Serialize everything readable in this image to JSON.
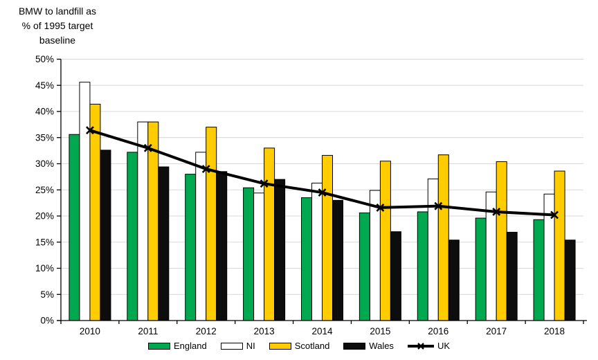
{
  "chart_data": {
    "type": "bar",
    "subtype": "grouped-bars-with-line-overlay",
    "title": "BMW to landfill as\n% of 1995 target\nbaseline",
    "categories": [
      "2010",
      "2011",
      "2012",
      "2013",
      "2014",
      "2015",
      "2016",
      "2017",
      "2018"
    ],
    "series": [
      {
        "name": "England",
        "type": "bar",
        "color": "#00A94F",
        "values": [
          35.6,
          32.2,
          28.0,
          25.4,
          23.5,
          20.6,
          20.8,
          19.6,
          19.3
        ]
      },
      {
        "name": "NI",
        "type": "bar",
        "color": "#FFFFFF",
        "values": [
          45.6,
          38.0,
          32.2,
          24.4,
          26.3,
          24.9,
          27.1,
          24.6,
          24.2
        ]
      },
      {
        "name": "Scotland",
        "type": "bar",
        "color": "#FFCC00",
        "values": [
          41.4,
          38.0,
          37.0,
          33.0,
          31.6,
          30.5,
          31.7,
          30.4,
          28.6
        ]
      },
      {
        "name": "Wales",
        "type": "bar",
        "color": "#0D0D0D",
        "values": [
          32.6,
          29.4,
          28.5,
          27.0,
          23.0,
          17.0,
          15.4,
          16.9,
          15.4
        ]
      },
      {
        "name": "UK",
        "type": "line",
        "color": "#000000",
        "marker": "x",
        "values": [
          36.4,
          33.0,
          29.0,
          26.2,
          24.5,
          21.6,
          21.9,
          20.8,
          20.2
        ]
      }
    ],
    "xlabel": "",
    "ylabel": "BMW to landfill as % of 1995 target baseline",
    "ylim": [
      0,
      50
    ],
    "ytick_step": 5,
    "ytick_labels": [
      "0%",
      "5%",
      "10%",
      "15%",
      "20%",
      "25%",
      "30%",
      "35%",
      "40%",
      "45%",
      "50%"
    ],
    "ytick_suffix": "%",
    "grid": "horizontal",
    "gridline_color": "#D9D9D9",
    "axis_color": "#000000",
    "bar_border_color": "#000000",
    "legend_position": "bottom",
    "legend_entries": [
      "England",
      "NI",
      "Scotland",
      "Wales",
      "UK"
    ]
  }
}
